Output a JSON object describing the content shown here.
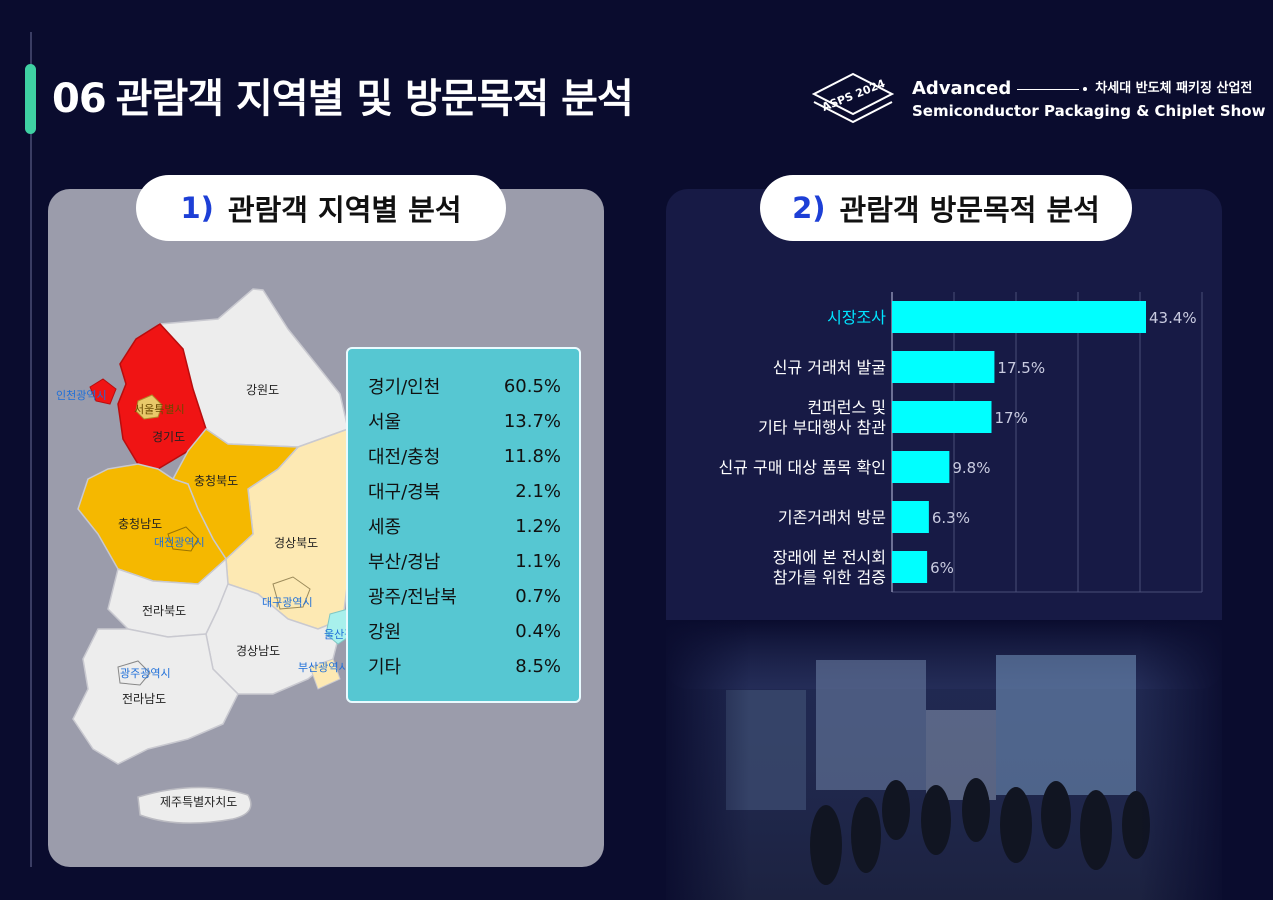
{
  "header": {
    "number": "06",
    "title": "관람객 지역별 및 방문목적 분석"
  },
  "brand": {
    "logo_text": "ASPS 2024",
    "line1_en": "Advanced",
    "line1_ko": "차세대 반도체 패키징 산업전",
    "line2": "Semiconductor Packaging & Chiplet Show"
  },
  "section1": {
    "number": "1)",
    "title": "관람객 지역별 분석"
  },
  "section2": {
    "number": "2)",
    "title": "관람객 방문목적 분석"
  },
  "map": {
    "labels": {
      "incheon": "인천광역시",
      "seoul": "서울특별시",
      "gyeonggi": "경기도",
      "gangwon": "강원도",
      "chungbuk": "충청북도",
      "chungnam": "충청남도",
      "daejeon": "대전광역시",
      "gyeongbuk": "경상북도",
      "daegu": "대구광역시",
      "jeonbuk": "전라북도",
      "gyeongnam": "경상남도",
      "ulsan": "울산광역시",
      "busan": "부산광역시",
      "gwangju": "광주광역시",
      "jeonnam": "전라남도",
      "jeju": "제주특별자치도"
    },
    "colors": {
      "top": "#f01414",
      "high": "#f5b800",
      "mid": "#fde9b3",
      "low": "#ededed",
      "cyan": "#56c7d2"
    }
  },
  "region_stats": [
    {
      "region": "경기/인천",
      "value": "60.5%"
    },
    {
      "region": "서울",
      "value": "13.7%"
    },
    {
      "region": "대전/충청",
      "value": "11.8%"
    },
    {
      "region": "대구/경북",
      "value": "2.1%"
    },
    {
      "region": "세종",
      "value": "1.2%"
    },
    {
      "region": "부산/경남",
      "value": "1.1%"
    },
    {
      "region": "광주/전남북",
      "value": "0.7%"
    },
    {
      "region": "강원",
      "value": "0.4%"
    },
    {
      "region": "기타",
      "value": "8.5%"
    }
  ],
  "chart_data": {
    "type": "bar",
    "orientation": "horizontal",
    "categories": [
      [
        "시장조사"
      ],
      [
        "신규 거래처 발굴"
      ],
      [
        "컨퍼런스 및",
        "기타 부대행사 참관"
      ],
      [
        "신규 구매 대상 품목 확인"
      ],
      [
        "기존거래처 방문"
      ],
      [
        "장래에 본 전시회",
        "참가를 위한 검증"
      ]
    ],
    "values": [
      43.4,
      17.5,
      17,
      9.8,
      6.3,
      6
    ],
    "value_labels": [
      "43.4%",
      "17.5%",
      "17%",
      "9.8%",
      "6.3%",
      "6%"
    ],
    "highlight_index": 0,
    "xlim": [
      0,
      50
    ],
    "grid": true,
    "bar_color": "#00ffff",
    "highlight_label_color": "#00e5ff"
  }
}
